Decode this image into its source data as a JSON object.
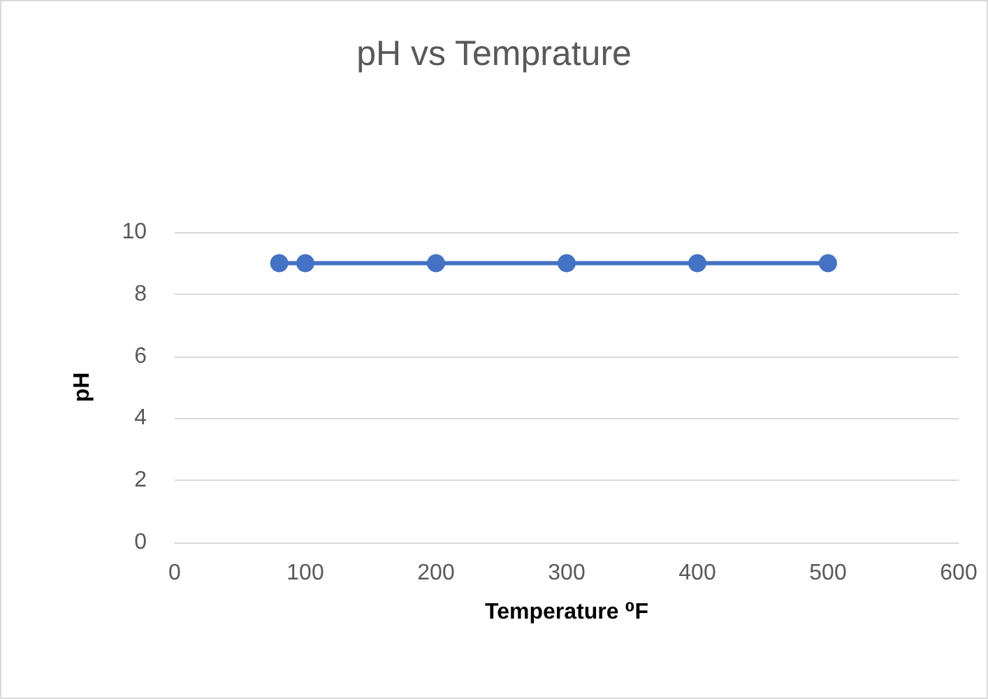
{
  "chart_data": {
    "type": "line",
    "title": "pH vs Temprature",
    "xlabel": "Temperature ⁰F",
    "ylabel": "pH",
    "x": [
      80,
      100,
      200,
      300,
      400,
      500
    ],
    "series": [
      {
        "color": "#4472c4",
        "values": [
          9,
          9,
          9,
          9,
          9,
          9
        ]
      }
    ],
    "xlim": [
      0,
      600
    ],
    "xticks": [
      0,
      100,
      200,
      300,
      400,
      500,
      600
    ],
    "ylim": [
      0,
      10
    ],
    "yticks": [
      0,
      2,
      4,
      6,
      8,
      10
    ],
    "grid": "y",
    "marker": "circle",
    "line_style": "solid"
  }
}
